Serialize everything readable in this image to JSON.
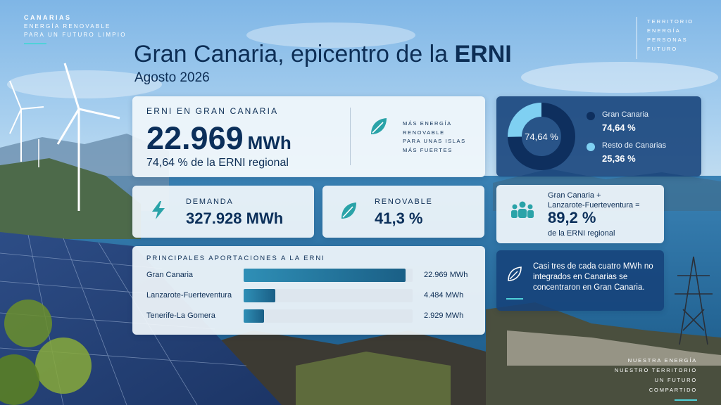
{
  "corner_top_left": {
    "line1": "CANARIAS",
    "line2": "ENERGÍA RENOVABLE",
    "line3": "PARA UN FUTURO LIMPIO"
  },
  "corner_top_right": [
    "TERRITORIO",
    "ENERGÍA",
    "PERSONAS",
    "FUTURO"
  ],
  "corner_bottom_right": [
    "NUESTRA ENERGÍA",
    "NUESTRO TERRITORIO",
    "UN FUTURO COMPARTIDO"
  ],
  "header": {
    "title_prefix": "Gran Canaria, epicentro de la ",
    "title_bold": "ERNI",
    "subtitle": "Agosto 2026"
  },
  "main": {
    "label": "ERNI EN GRAN CANARIA",
    "value": "22.969",
    "unit": "MWh",
    "share": "74,64 % de la ERNI regional",
    "tagline": [
      "MÁS ENERGÍA",
      "RENOVABLE",
      "PARA UNAS ISLAS",
      "MÁS FUERTES"
    ]
  },
  "donut": {
    "center_label": "74,64 %",
    "segments": [
      {
        "name": "Gran Canaria",
        "label": "74,64 %",
        "value": 74.64,
        "color": "#0e2f5e"
      },
      {
        "name": "Resto de Canarias",
        "label": "25,36 %",
        "value": 25.36,
        "color": "#7fd0f2"
      }
    ]
  },
  "demanda": {
    "label": "DEMANDA",
    "value": "327.928 MWh"
  },
  "renovable": {
    "label": "RENOVABLE",
    "value": "41,3 %"
  },
  "gclf": {
    "line_a": "Gran Canaria +",
    "line_b": "Lanzarote-Fuerteventura =",
    "value": "89,2 %",
    "line_c": "de la ERNI regional"
  },
  "aportaciones": {
    "header": "PRINCIPALES APORTACIONES A LA ERNI",
    "max": 24000,
    "rows": [
      {
        "name": "Gran Canaria",
        "value": 22969,
        "label": "22.969 MWh"
      },
      {
        "name": "Lanzarote-Fuerteventura",
        "value": 4484,
        "label": "4.484 MWh"
      },
      {
        "name": "Tenerife-La Gomera",
        "value": 2929,
        "label": "2.929 MWh"
      }
    ]
  },
  "quote": {
    "text": "Casi tres de cada cuatro MWh no integrados en Canarias se concentraron en Gran Canaria."
  },
  "colors": {
    "navy": "#0b2f5a",
    "accent_teal": "#4fd1d9",
    "leaf_teal": "#2aa3a8"
  }
}
